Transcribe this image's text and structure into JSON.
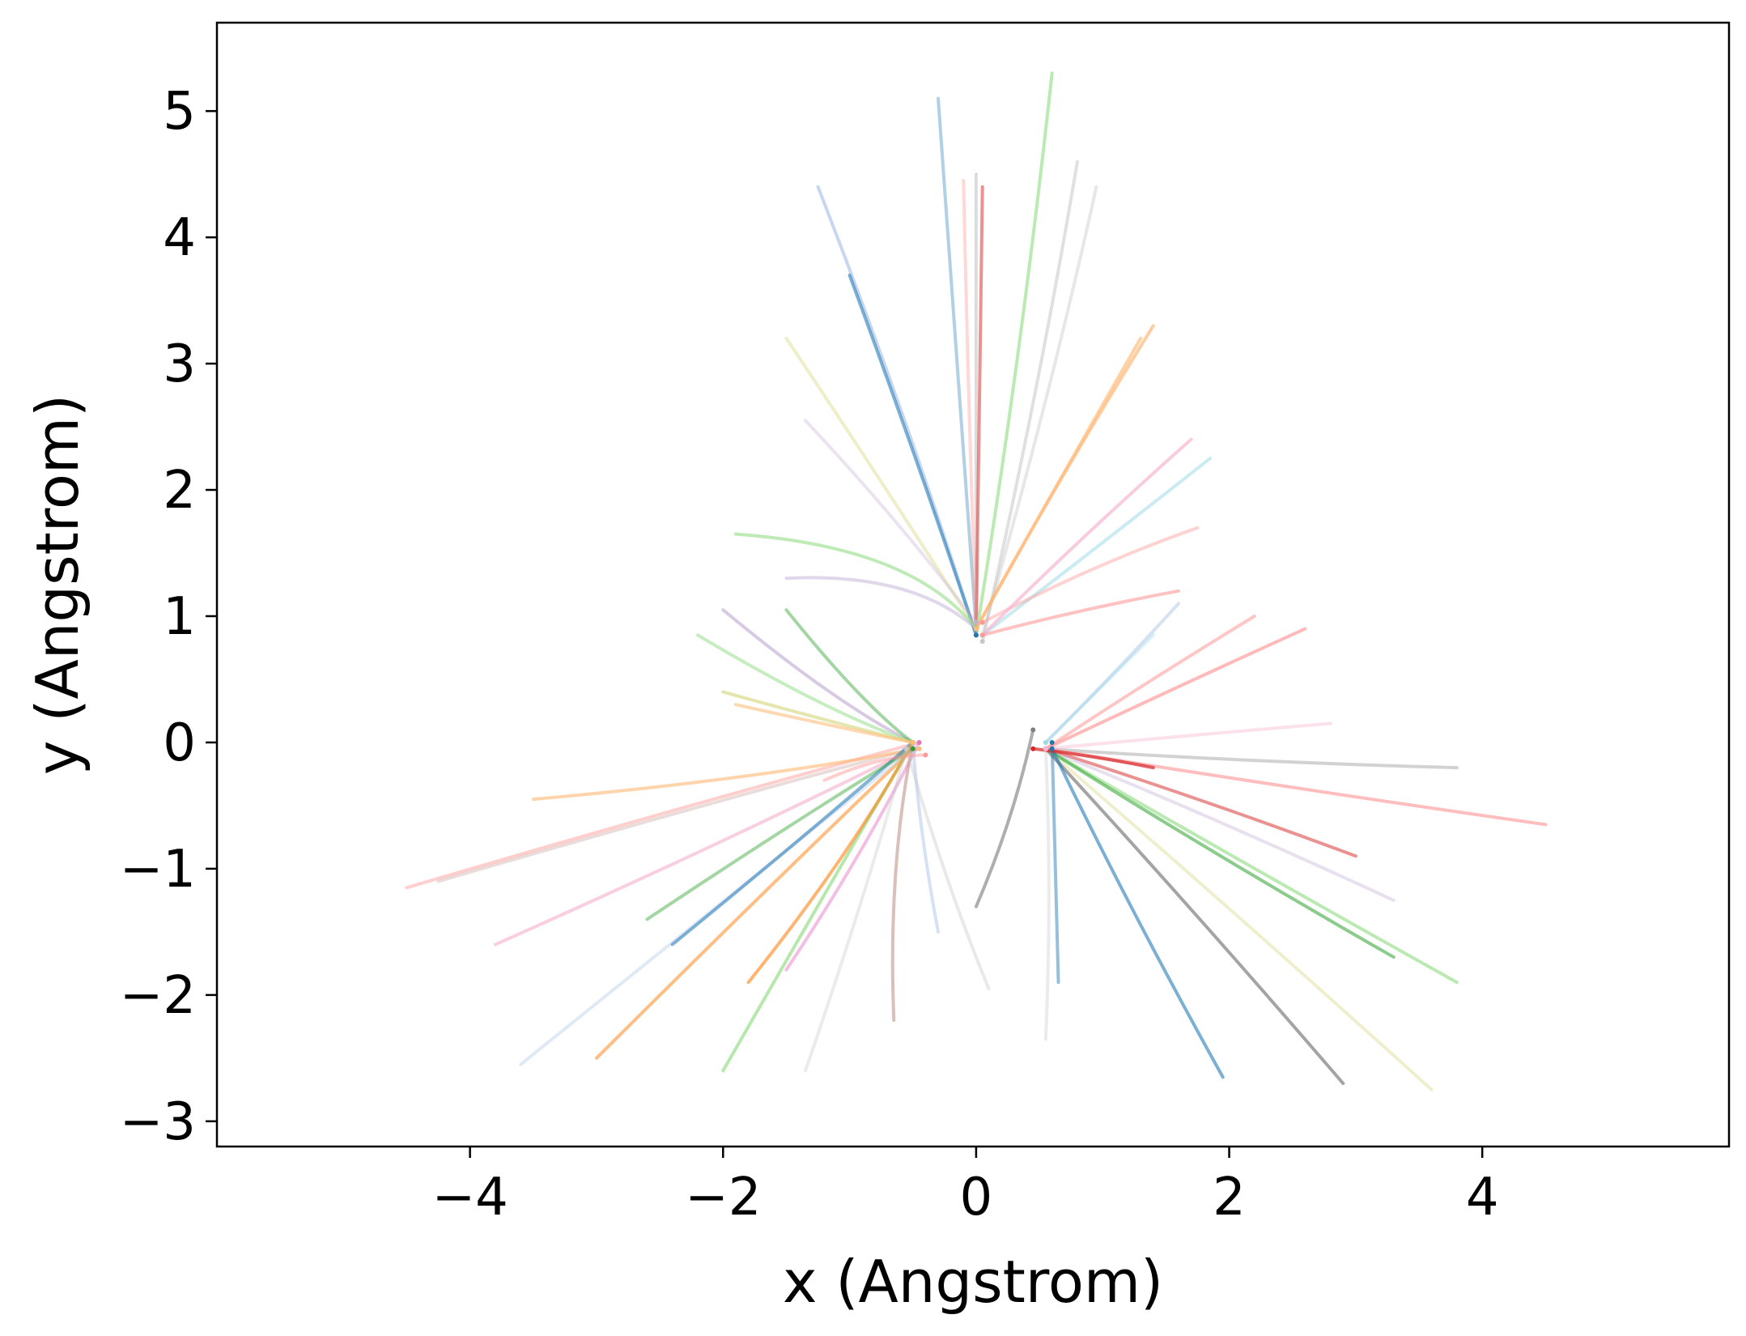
{
  "chart_data": {
    "type": "line",
    "xlabel": "x (Angstrom)",
    "ylabel": "y (Angstrom)",
    "xlim": [
      -6.0,
      5.95
    ],
    "ylim": [
      -3.2,
      5.7
    ],
    "xticks": [
      -4,
      -2,
      0,
      2,
      4
    ],
    "yticks": [
      -3,
      -2,
      -1,
      0,
      1,
      2,
      3,
      4,
      5
    ],
    "xtick_labels": [
      "−4",
      "−2",
      "0",
      "2",
      "4"
    ],
    "ytick_labels": [
      "−3",
      "−2",
      "−1",
      "0",
      "1",
      "2",
      "3",
      "4",
      "5"
    ],
    "grid": false,
    "legend": "none",
    "clusters": [
      {
        "name": "top",
        "center": [
          0.0,
          0.85
        ]
      },
      {
        "name": "left",
        "center": [
          -0.5,
          0.0
        ]
      },
      {
        "name": "right",
        "center": [
          0.55,
          -0.05
        ]
      }
    ],
    "palette": [
      "#1f77b4",
      "#aec7e8",
      "#ff7f0e",
      "#ffbb78",
      "#2ca02c",
      "#98df8a",
      "#d62728",
      "#ff9896",
      "#9467bd",
      "#c5b0d5",
      "#8c564b",
      "#c49c94",
      "#e377c2",
      "#f7b6d2",
      "#7f7f7f",
      "#c7c7c7",
      "#bcbd22",
      "#dbdb8d",
      "#17becf",
      "#9edae5"
    ],
    "series": [
      {
        "cluster": "top",
        "color": "#1f77b4",
        "values": [
          [
            -0.3,
            5.1
          ],
          [
            -0.15,
            3.0
          ],
          [
            0.0,
            0.9
          ]
        ]
      },
      {
        "cluster": "top",
        "color": "#c7c7c7",
        "values": [
          [
            0.0,
            4.5
          ],
          [
            0.0,
            2.5
          ],
          [
            0.0,
            0.85
          ]
        ]
      },
      {
        "cluster": "top",
        "color": "#d62728",
        "values": [
          [
            0.05,
            4.4
          ],
          [
            0.03,
            2.5
          ],
          [
            0.0,
            0.85
          ]
        ]
      },
      {
        "cluster": "top",
        "color": "#ff9896",
        "values": [
          [
            -0.1,
            4.45
          ],
          [
            -0.06,
            2.6
          ],
          [
            0.0,
            0.9
          ]
        ]
      },
      {
        "cluster": "top",
        "color": "#98df8a",
        "values": [
          [
            0.6,
            5.3
          ],
          [
            0.35,
            3.0
          ],
          [
            0.0,
            0.85
          ]
        ]
      },
      {
        "cluster": "top",
        "color": "#c7c7c7",
        "values": [
          [
            0.8,
            4.6
          ],
          [
            0.5,
            2.8
          ],
          [
            0.05,
            0.8
          ]
        ]
      },
      {
        "cluster": "top",
        "color": "#c7c7c7",
        "values": [
          [
            0.95,
            4.4
          ],
          [
            0.6,
            2.8
          ],
          [
            0.05,
            0.85
          ]
        ]
      },
      {
        "cluster": "top",
        "color": "#aec7e8",
        "values": [
          [
            -1.25,
            4.4
          ],
          [
            -0.55,
            2.6
          ],
          [
            0.0,
            0.85
          ]
        ]
      },
      {
        "cluster": "top",
        "color": "#1f77b4",
        "values": [
          [
            -1.0,
            3.7
          ],
          [
            -0.45,
            2.2
          ],
          [
            0.0,
            0.85
          ]
        ]
      },
      {
        "cluster": "top",
        "color": "#dbdb8d",
        "values": [
          [
            -1.5,
            3.2
          ],
          [
            -0.7,
            2.0
          ],
          [
            0.0,
            0.9
          ]
        ]
      },
      {
        "cluster": "top",
        "color": "#c5b0d5",
        "values": [
          [
            -1.35,
            2.55
          ],
          [
            -0.6,
            1.75
          ],
          [
            0.0,
            0.95
          ]
        ]
      },
      {
        "cluster": "top",
        "color": "#98df8a",
        "values": [
          [
            -1.9,
            1.65
          ],
          [
            -0.5,
            1.55
          ],
          [
            0.0,
            0.9
          ]
        ]
      },
      {
        "cluster": "top",
        "color": "#c5b0d5",
        "values": [
          [
            -1.5,
            1.3
          ],
          [
            -0.5,
            1.35
          ],
          [
            0.0,
            0.9
          ]
        ]
      },
      {
        "cluster": "top",
        "color": "#ff7f0e",
        "values": [
          [
            1.4,
            3.3
          ],
          [
            0.6,
            2.0
          ],
          [
            0.0,
            0.9
          ]
        ]
      },
      {
        "cluster": "top",
        "color": "#ffbb78",
        "values": [
          [
            1.3,
            3.2
          ],
          [
            0.5,
            1.8
          ],
          [
            0.0,
            0.9
          ]
        ]
      },
      {
        "cluster": "top",
        "color": "#9edae5",
        "values": [
          [
            1.85,
            2.25
          ],
          [
            0.9,
            1.5
          ],
          [
            0.05,
            0.85
          ]
        ]
      },
      {
        "cluster": "top",
        "color": "#ff9896",
        "values": [
          [
            1.75,
            1.7
          ],
          [
            0.9,
            1.4
          ],
          [
            0.05,
            0.95
          ]
        ]
      },
      {
        "cluster": "top",
        "color": "#f7b6d2",
        "values": [
          [
            1.7,
            2.4
          ],
          [
            0.8,
            1.6
          ],
          [
            0.05,
            0.85
          ]
        ]
      },
      {
        "cluster": "top",
        "color": "#ff9896",
        "values": [
          [
            1.6,
            1.2
          ],
          [
            0.8,
            1.05
          ],
          [
            0.05,
            0.85
          ]
        ]
      },
      {
        "cluster": "left",
        "color": "#ff9896",
        "values": [
          [
            -4.5,
            -1.15
          ],
          [
            -2.3,
            -0.5
          ],
          [
            -0.45,
            0.0
          ]
        ]
      },
      {
        "cluster": "left",
        "color": "#c49c94",
        "values": [
          [
            -4.25,
            -1.1
          ],
          [
            -2.2,
            -0.5
          ],
          [
            -0.5,
            -0.05
          ]
        ]
      },
      {
        "cluster": "left",
        "color": "#ffbb78",
        "values": [
          [
            -3.5,
            -0.45
          ],
          [
            -1.8,
            -0.3
          ],
          [
            -0.45,
            -0.05
          ]
        ]
      },
      {
        "cluster": "left",
        "color": "#ff7f0e",
        "values": [
          [
            -3.0,
            -2.5
          ],
          [
            -1.6,
            -1.1
          ],
          [
            -0.5,
            -0.05
          ]
        ]
      },
      {
        "cluster": "left",
        "color": "#aec7e8",
        "values": [
          [
            -3.6,
            -2.55
          ],
          [
            -1.8,
            -1.1
          ],
          [
            -0.5,
            -0.05
          ]
        ]
      },
      {
        "cluster": "left",
        "color": "#f7b6d2",
        "values": [
          [
            -3.8,
            -1.6
          ],
          [
            -2.0,
            -0.8
          ],
          [
            -0.5,
            -0.05
          ]
        ]
      },
      {
        "cluster": "left",
        "color": "#1f77b4",
        "values": [
          [
            -2.4,
            -1.6
          ],
          [
            -1.3,
            -0.7
          ],
          [
            -0.5,
            0.0
          ]
        ]
      },
      {
        "cluster": "left",
        "color": "#2ca02c",
        "values": [
          [
            -2.6,
            -1.4
          ],
          [
            -1.4,
            -0.6
          ],
          [
            -0.5,
            -0.05
          ]
        ]
      },
      {
        "cluster": "left",
        "color": "#98df8a",
        "values": [
          [
            -2.0,
            -2.6
          ],
          [
            -1.2,
            -1.2
          ],
          [
            -0.5,
            0.0
          ]
        ]
      },
      {
        "cluster": "left",
        "color": "#ff7f0e",
        "values": [
          [
            -1.8,
            -1.9
          ],
          [
            -1.0,
            -0.9
          ],
          [
            -0.5,
            0.0
          ]
        ]
      },
      {
        "cluster": "left",
        "color": "#e377c2",
        "values": [
          [
            -1.5,
            -1.8
          ],
          [
            -0.9,
            -0.9
          ],
          [
            -0.45,
            0.0
          ]
        ]
      },
      {
        "cluster": "left",
        "color": "#c7c7c7",
        "values": [
          [
            -1.35,
            -2.6
          ],
          [
            -0.9,
            -1.3
          ],
          [
            -0.55,
            -0.05
          ]
        ]
      },
      {
        "cluster": "left",
        "color": "#c49c94",
        "values": [
          [
            -0.65,
            -2.2
          ],
          [
            -0.7,
            -1.0
          ],
          [
            -0.5,
            0.0
          ]
        ]
      },
      {
        "cluster": "left",
        "color": "#aec7e8",
        "values": [
          [
            -0.3,
            -1.5
          ],
          [
            -0.45,
            -0.7
          ],
          [
            -0.5,
            0.0
          ]
        ]
      },
      {
        "cluster": "left",
        "color": "#c7c7c7",
        "values": [
          [
            0.1,
            -1.95
          ],
          [
            -0.25,
            -1.1
          ],
          [
            -0.55,
            -0.05
          ]
        ]
      },
      {
        "cluster": "left",
        "color": "#c5b0d5",
        "values": [
          [
            -2.0,
            1.05
          ],
          [
            -1.1,
            0.3
          ],
          [
            -0.5,
            0.0
          ]
        ]
      },
      {
        "cluster": "left",
        "color": "#98df8a",
        "values": [
          [
            -2.2,
            0.85
          ],
          [
            -1.2,
            0.25
          ],
          [
            -0.5,
            0.0
          ]
        ]
      },
      {
        "cluster": "left",
        "color": "#2ca02c",
        "values": [
          [
            -1.5,
            1.05
          ],
          [
            -0.9,
            0.3
          ],
          [
            -0.5,
            0.0
          ]
        ]
      },
      {
        "cluster": "left",
        "color": "#dbdb8d",
        "values": [
          [
            -2.0,
            0.4
          ],
          [
            -1.1,
            0.15
          ],
          [
            -0.5,
            0.0
          ]
        ]
      },
      {
        "cluster": "left",
        "color": "#ffbb78",
        "values": [
          [
            -1.9,
            0.3
          ],
          [
            -1.0,
            0.1
          ],
          [
            -0.5,
            0.0
          ]
        ]
      },
      {
        "cluster": "left",
        "color": "#ff9896",
        "values": [
          [
            -1.2,
            -0.3
          ],
          [
            -0.75,
            -0.1
          ],
          [
            -0.4,
            -0.1
          ]
        ]
      },
      {
        "cluster": "right",
        "color": "#7f7f7f",
        "values": [
          [
            3.8,
            -0.2
          ],
          [
            2.0,
            -0.15
          ],
          [
            0.55,
            -0.05
          ]
        ]
      },
      {
        "cluster": "right",
        "color": "#ff9896",
        "values": [
          [
            4.5,
            -0.65
          ],
          [
            2.4,
            -0.35
          ],
          [
            0.55,
            -0.05
          ]
        ]
      },
      {
        "cluster": "right",
        "color": "#d62728",
        "values": [
          [
            3.0,
            -0.9
          ],
          [
            1.8,
            -0.45
          ],
          [
            0.55,
            -0.05
          ]
        ]
      },
      {
        "cluster": "right",
        "color": "#c5b0d5",
        "values": [
          [
            3.3,
            -1.25
          ],
          [
            1.9,
            -0.6
          ],
          [
            0.55,
            -0.05
          ]
        ]
      },
      {
        "cluster": "right",
        "color": "#98df8a",
        "values": [
          [
            3.8,
            -1.9
          ],
          [
            2.1,
            -0.95
          ],
          [
            0.55,
            -0.05
          ]
        ]
      },
      {
        "cluster": "right",
        "color": "#2ca02c",
        "values": [
          [
            3.3,
            -1.7
          ],
          [
            1.9,
            -0.9
          ],
          [
            0.55,
            -0.05
          ]
        ]
      },
      {
        "cluster": "right",
        "color": "#dbdb8d",
        "values": [
          [
            3.6,
            -2.75
          ],
          [
            2.0,
            -1.3
          ],
          [
            0.55,
            -0.05
          ]
        ]
      },
      {
        "cluster": "right",
        "color": "#7f7f7f",
        "values": [
          [
            2.9,
            -2.7
          ],
          [
            1.7,
            -1.3
          ],
          [
            0.55,
            -0.05
          ]
        ]
      },
      {
        "cluster": "right",
        "color": "#1f77b4",
        "values": [
          [
            1.95,
            -2.65
          ],
          [
            1.2,
            -1.3
          ],
          [
            0.6,
            -0.05
          ]
        ]
      },
      {
        "cluster": "right",
        "color": "#1f77b4",
        "values": [
          [
            0.65,
            -1.9
          ],
          [
            0.62,
            -0.9
          ],
          [
            0.6,
            0.0
          ]
        ]
      },
      {
        "cluster": "right",
        "color": "#c7c7c7",
        "values": [
          [
            0.55,
            -2.35
          ],
          [
            0.6,
            -1.2
          ],
          [
            0.55,
            -0.05
          ]
        ]
      },
      {
        "cluster": "right",
        "color": "#7f7f7f",
        "values": [
          [
            0.0,
            -1.3
          ],
          [
            0.3,
            -0.6
          ],
          [
            0.45,
            0.1
          ]
        ]
      },
      {
        "cluster": "right",
        "color": "#aec7e8",
        "values": [
          [
            1.6,
            1.1
          ],
          [
            1.1,
            0.55
          ],
          [
            0.55,
            0.0
          ]
        ]
      },
      {
        "cluster": "right",
        "color": "#9edae5",
        "values": [
          [
            1.4,
            0.85
          ],
          [
            1.0,
            0.45
          ],
          [
            0.55,
            0.0
          ]
        ]
      },
      {
        "cluster": "right",
        "color": "#ff9896",
        "values": [
          [
            2.6,
            0.9
          ],
          [
            1.5,
            0.4
          ],
          [
            0.55,
            -0.05
          ]
        ]
      },
      {
        "cluster": "right",
        "color": "#ff9896",
        "values": [
          [
            2.2,
            1.0
          ],
          [
            1.3,
            0.45
          ],
          [
            0.55,
            -0.05
          ]
        ]
      },
      {
        "cluster": "right",
        "color": "#f7b6d2",
        "values": [
          [
            2.8,
            0.15
          ],
          [
            1.6,
            0.05
          ],
          [
            0.55,
            -0.05
          ]
        ]
      },
      {
        "cluster": "right",
        "color": "#d62728",
        "values": [
          [
            1.4,
            -0.2
          ],
          [
            0.9,
            -0.1
          ],
          [
            0.45,
            -0.05
          ]
        ]
      }
    ]
  }
}
